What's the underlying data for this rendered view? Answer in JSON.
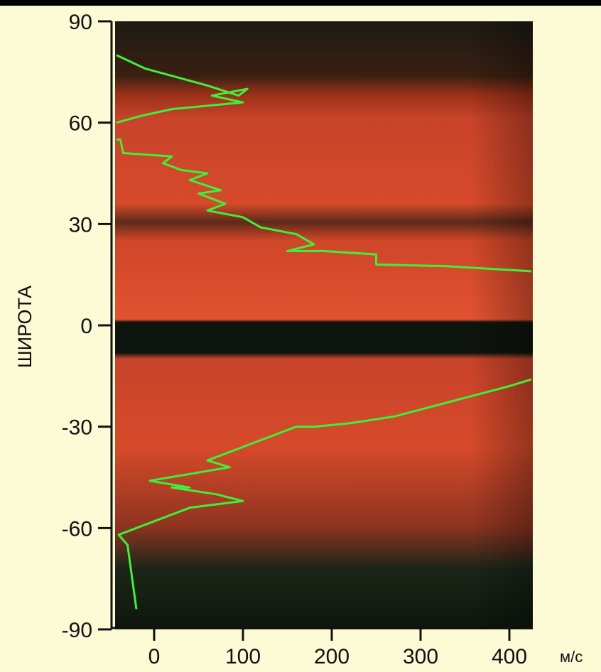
{
  "chart_data": {
    "type": "line",
    "title": "",
    "xlabel": "м/с",
    "ylabel": "ШИРОТА",
    "xlim": [
      -50,
      430
    ],
    "ylim": [
      -90,
      90
    ],
    "x_ticks": [
      "0",
      "100",
      "200",
      "300",
      "400"
    ],
    "x_tick_values": [
      0,
      100,
      200,
      300,
      400
    ],
    "y_ticks": [
      "90",
      "60",
      "30",
      "0",
      "-30",
      "-60",
      "-90"
    ],
    "y_tick_values": [
      90,
      60,
      30,
      0,
      -30,
      -60,
      -90
    ],
    "grid": false,
    "legend": "none",
    "colors": {
      "line": "#3ef03a",
      "background": "#fdfbd6",
      "planet_band": "#d84a2a",
      "dark_band": "#121a10"
    },
    "series": [
      {
        "values_note_units": "x = wind speed (м/с), y = latitude (degrees)",
        "north": [
          [
            -45,
            80
          ],
          [
            -10,
            76
          ],
          [
            60,
            71
          ],
          [
            95,
            68
          ],
          [
            105,
            70
          ],
          [
            65,
            68
          ],
          [
            100,
            66
          ],
          [
            60,
            65
          ],
          [
            20,
            64
          ],
          [
            -15,
            62
          ],
          [
            -45,
            60
          ]
        ],
        "south_mid": [
          [
            -45,
            55
          ],
          [
            -38,
            55
          ],
          [
            -35,
            51
          ],
          [
            20,
            50
          ],
          [
            10,
            48
          ],
          [
            30,
            46
          ],
          [
            60,
            45
          ],
          [
            40,
            43
          ],
          [
            75,
            40
          ],
          [
            50,
            39
          ],
          [
            80,
            36
          ],
          [
            60,
            34
          ],
          [
            100,
            32
          ],
          [
            120,
            29
          ],
          [
            160,
            27
          ],
          [
            180,
            24
          ],
          [
            150,
            22
          ],
          [
            190,
            22
          ],
          [
            250,
            21
          ],
          [
            250,
            18
          ],
          [
            330,
            17.5
          ],
          [
            430,
            16
          ]
        ],
        "southern": [
          [
            430,
            -16
          ],
          [
            400,
            -18
          ],
          [
            270,
            -27
          ],
          [
            220,
            -29
          ],
          [
            180,
            -30
          ],
          [
            160,
            -30
          ],
          [
            110,
            -35
          ],
          [
            60,
            -40
          ],
          [
            85,
            -42
          ],
          [
            -5,
            -46
          ],
          [
            40,
            -48
          ],
          [
            20,
            -48
          ],
          [
            70,
            -50
          ],
          [
            100,
            -52
          ],
          [
            40,
            -54
          ],
          [
            -40,
            -62
          ],
          [
            -30,
            -65
          ],
          [
            -20,
            -84
          ]
        ]
      }
    ]
  }
}
